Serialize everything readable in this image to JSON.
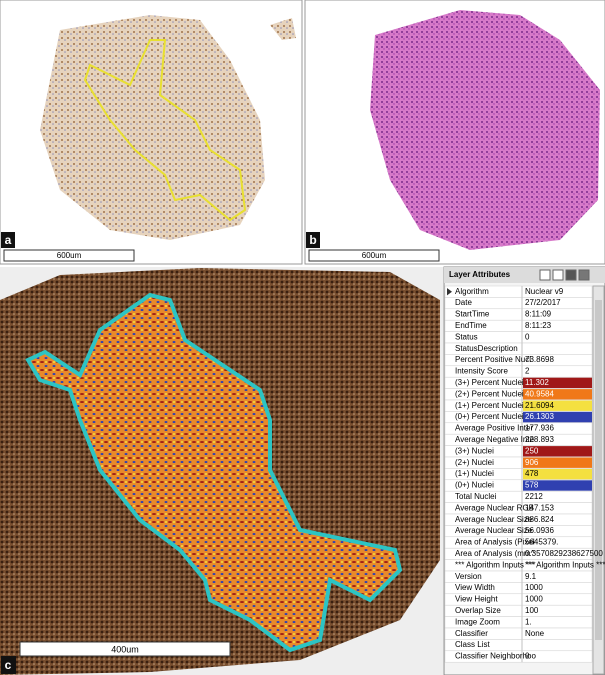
{
  "panels": {
    "a": {
      "label": "a",
      "scale_bar": "600um"
    },
    "b": {
      "label": "b",
      "scale_bar": "600um"
    },
    "c": {
      "label": "c",
      "scale_bar": "400um"
    }
  },
  "layer_attributes": {
    "title": "Layer Attributes",
    "rows": [
      {
        "name": "Algorithm",
        "value": "Nuclear v9"
      },
      {
        "name": "Date",
        "value": "27/2/2017"
      },
      {
        "name": "StartTime",
        "value": "8:11:09"
      },
      {
        "name": "EndTime",
        "value": "8:11:23"
      },
      {
        "name": "Status",
        "value": "0"
      },
      {
        "name": "StatusDescription"
      },
      {
        "name": "Percent Positive Nucl",
        "value": "73.8698"
      },
      {
        "name": "Intensity Score",
        "value": "2"
      },
      {
        "name": "(3+) Percent Nuclei",
        "value": "11.302",
        "color": "#a01818"
      },
      {
        "name": "(2+) Percent Nuclei",
        "value": "40.9584",
        "color": "#f07818"
      },
      {
        "name": "(1+) Percent Nuclei",
        "value": "21.6094",
        "color": "#f4e040"
      },
      {
        "name": "(0+) Percent Nuclei",
        "value": "26.1303",
        "color": "#3040b0"
      },
      {
        "name": "Average Positive Inter",
        "value": "177.936"
      },
      {
        "name": "Average Negative Inte",
        "value": "228.893"
      },
      {
        "name": "(3+) Nuclei",
        "value": "250",
        "color": "#a01818"
      },
      {
        "name": "(2+) Nuclei",
        "value": "906",
        "color": "#f07818"
      },
      {
        "name": "(1+) Nuclei",
        "value": "478",
        "color": "#f4e040"
      },
      {
        "name": "(0+) Nuclei",
        "value": "578",
        "color": "#3040b0"
      },
      {
        "name": "Total Nuclei",
        "value": "2212"
      },
      {
        "name": "Average Nuclear RGB",
        "value": "147.153"
      },
      {
        "name": "Average Nuclear Size",
        "value": "886.824"
      },
      {
        "name": "Average Nuclear Size",
        "value": "56.0936"
      },
      {
        "name": "Area of Analysis (Pixel",
        "value": "5645379."
      },
      {
        "name": "Area of Analysis (mm^",
        "value": "0.3570829238627500"
      },
      {
        "name": "*** Algorithm Inputs ***",
        "value": "*** Algorithm Inputs ***"
      },
      {
        "name": "Version",
        "value": "9.1"
      },
      {
        "name": "View Width",
        "value": "1000"
      },
      {
        "name": "View Height",
        "value": "1000"
      },
      {
        "name": "Overlap Size",
        "value": "100"
      },
      {
        "name": "Image Zoom",
        "value": "1."
      },
      {
        "name": "Classifier",
        "value": "None"
      },
      {
        "name": "Class List"
      },
      {
        "name": "Classifier Neighborhoo",
        "value": "0"
      }
    ]
  }
}
